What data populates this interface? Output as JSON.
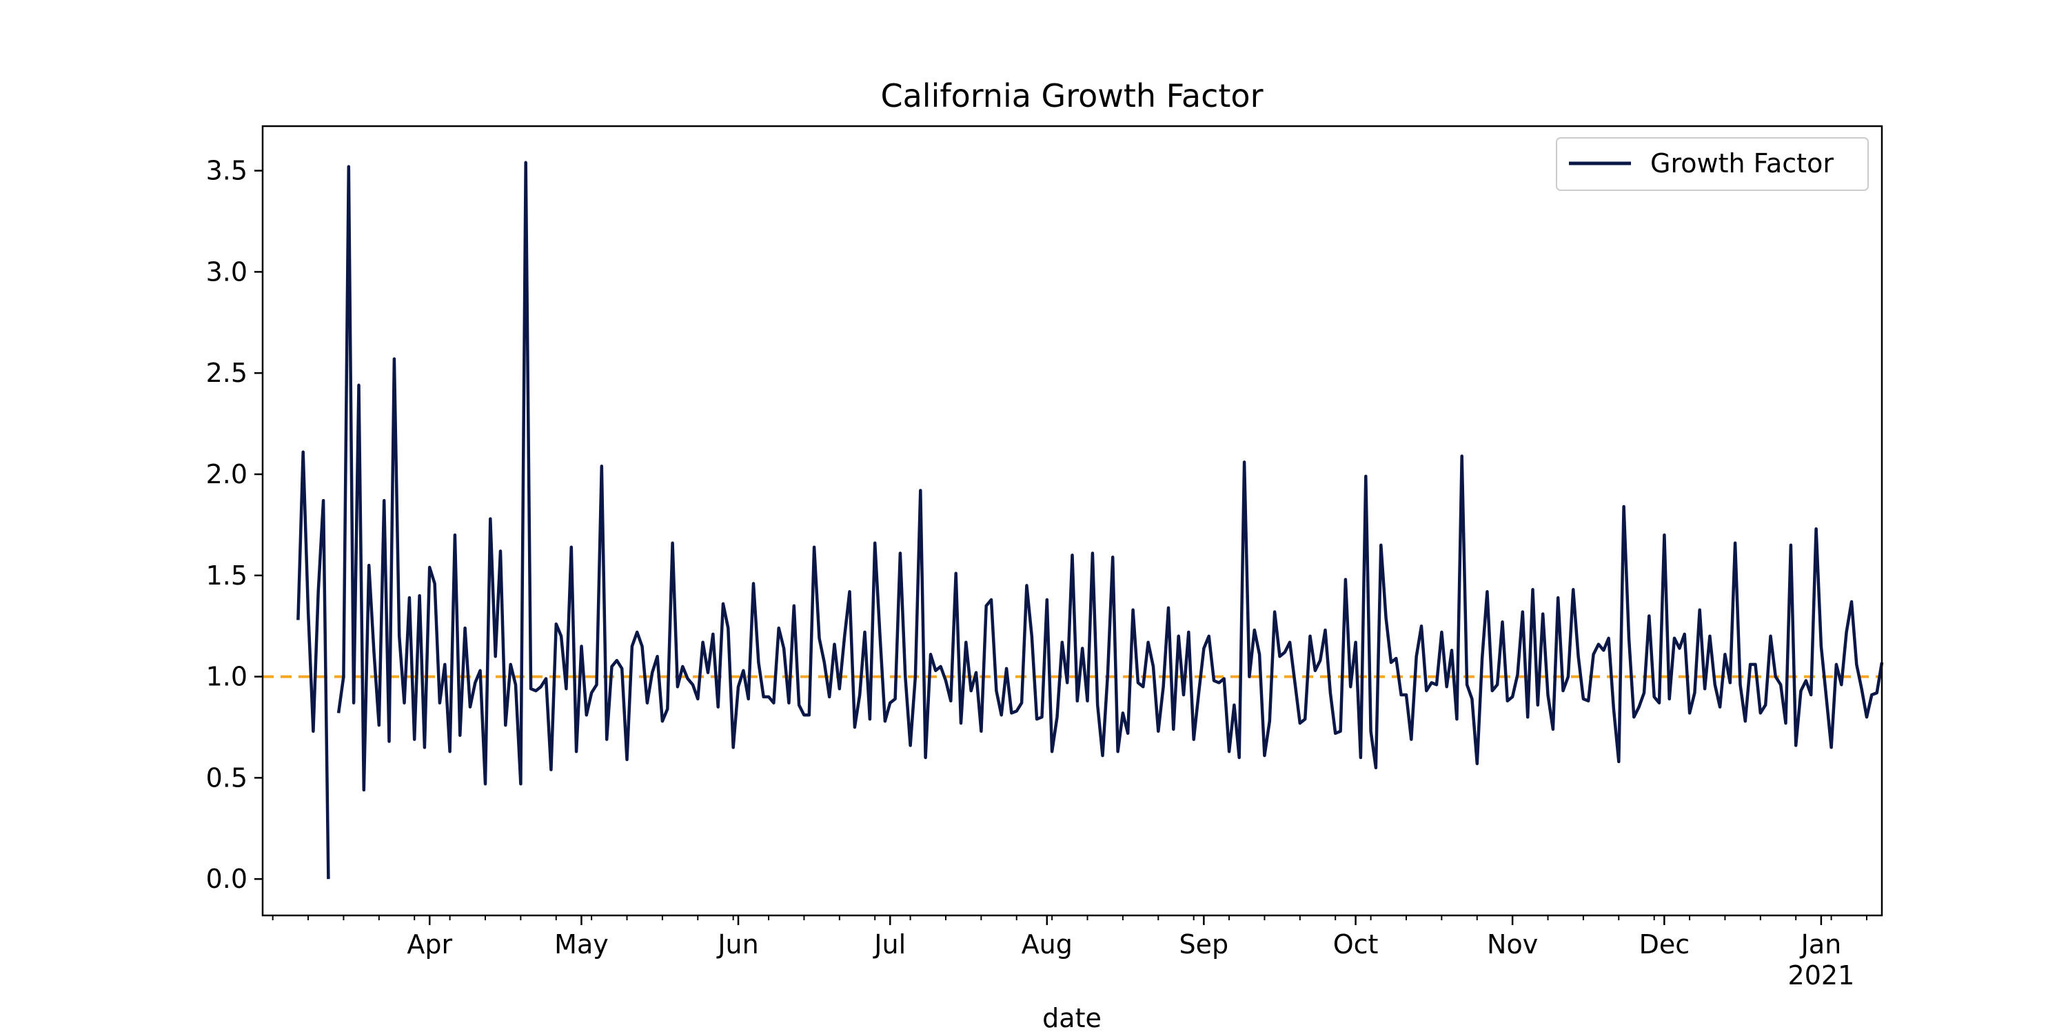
{
  "chart_data": {
    "type": "line",
    "title": "California Growth Factor",
    "xlabel": "date",
    "ylabel": "",
    "x_start": "2020-03-06",
    "xlim": [
      "2020-02-28",
      "2021-01-13"
    ],
    "ylim": [
      -0.18,
      3.72
    ],
    "y_ticks": [
      0.0,
      0.5,
      1.0,
      1.5,
      2.0,
      2.5,
      3.0,
      3.5
    ],
    "y_tick_labels": [
      "0.0",
      "0.5",
      "1.0",
      "1.5",
      "2.0",
      "2.5",
      "3.0",
      "3.5"
    ],
    "x_ticks": [
      {
        "date": "2020-04-01",
        "label": "Apr",
        "sublabel": ""
      },
      {
        "date": "2020-05-01",
        "label": "May",
        "sublabel": ""
      },
      {
        "date": "2020-06-01",
        "label": "Jun",
        "sublabel": ""
      },
      {
        "date": "2020-07-01",
        "label": "Jul",
        "sublabel": ""
      },
      {
        "date": "2020-08-01",
        "label": "Aug",
        "sublabel": ""
      },
      {
        "date": "2020-09-01",
        "label": "Sep",
        "sublabel": ""
      },
      {
        "date": "2020-10-01",
        "label": "Oct",
        "sublabel": ""
      },
      {
        "date": "2020-11-01",
        "label": "Nov",
        "sublabel": ""
      },
      {
        "date": "2020-12-01",
        "label": "Dec",
        "sublabel": ""
      },
      {
        "date": "2021-01-01",
        "label": "Jan",
        "sublabel": "2021"
      }
    ],
    "grid": false,
    "legend": {
      "position": "top-right",
      "entries": [
        "Growth Factor"
      ]
    },
    "reference_line": {
      "y": 1.0,
      "color": "#f5a623",
      "style": "dashed"
    },
    "series": [
      {
        "name": "Growth Factor",
        "color": "#0b1746",
        "values": [
          1.28,
          2.11,
          1.32,
          0.73,
          1.42,
          1.87,
          0.0,
          null,
          0.82,
          1.0,
          3.52,
          0.87,
          2.44,
          0.44,
          1.55,
          1.12,
          0.76,
          1.87,
          0.68,
          2.57,
          1.2,
          0.87,
          1.39,
          0.69,
          1.4,
          0.65,
          1.54,
          1.46,
          0.87,
          1.06,
          0.63,
          1.7,
          0.71,
          1.24,
          0.85,
          0.97,
          1.03,
          0.47,
          1.78,
          1.1,
          1.62,
          0.76,
          1.06,
          0.96,
          0.47,
          3.54,
          0.94,
          0.93,
          0.95,
          0.99,
          0.54,
          1.26,
          1.2,
          0.94,
          1.64,
          0.63,
          1.15,
          0.81,
          0.92,
          0.96,
          2.04,
          0.69,
          1.05,
          1.08,
          1.04,
          0.59,
          1.15,
          1.22,
          1.15,
          0.87,
          1.02,
          1.1,
          0.78,
          0.84,
          1.66,
          0.95,
          1.05,
          0.99,
          0.96,
          0.89,
          1.17,
          1.02,
          1.21,
          0.85,
          1.36,
          1.24,
          0.65,
          0.95,
          1.03,
          0.89,
          1.46,
          1.07,
          0.9,
          0.9,
          0.87,
          1.24,
          1.14,
          0.87,
          1.35,
          0.86,
          0.81,
          0.81,
          1.64,
          1.19,
          1.07,
          0.9,
          1.16,
          0.94,
          1.2,
          1.42,
          0.75,
          0.91,
          1.22,
          0.79,
          1.66,
          1.2,
          0.78,
          0.87,
          0.89,
          1.61,
          1.0,
          0.66,
          1.0,
          1.92,
          0.6,
          1.11,
          1.03,
          1.05,
          0.98,
          0.88,
          1.51,
          0.77,
          1.17,
          0.93,
          1.02,
          0.73,
          1.35,
          1.38,
          0.93,
          0.81,
          1.04,
          0.82,
          0.83,
          0.87,
          1.45,
          1.2,
          0.79,
          0.8,
          1.38,
          0.63,
          0.8,
          1.17,
          0.97,
          1.6,
          0.88,
          1.14,
          0.88,
          1.61,
          0.86,
          0.61,
          1.01,
          1.59,
          0.63,
          0.82,
          0.72,
          1.33,
          0.97,
          0.95,
          1.17,
          1.05,
          0.73,
          0.95,
          1.34,
          0.74,
          1.2,
          0.91,
          1.22,
          0.69,
          0.92,
          1.14,
          1.2,
          0.98,
          0.97,
          0.99,
          0.63,
          0.86,
          0.6,
          2.06,
          1.0,
          1.23,
          1.11,
          0.61,
          0.78,
          1.32,
          1.1,
          1.12,
          1.17,
          0.97,
          0.77,
          0.79,
          1.2,
          1.03,
          1.08,
          1.23,
          0.92,
          0.72,
          0.73,
          1.48,
          0.95,
          1.17,
          0.6,
          1.99,
          0.73,
          0.55,
          1.65,
          1.29,
          1.07,
          1.09,
          0.91,
          0.91,
          0.69,
          1.1,
          1.25,
          0.93,
          0.97,
          0.96,
          1.22,
          0.95,
          1.13,
          0.79,
          2.09,
          0.96,
          0.89,
          0.57,
          1.09,
          1.42,
          0.93,
          0.96,
          1.27,
          0.88,
          0.9,
          1.01,
          1.32,
          0.8,
          1.43,
          0.86,
          1.31,
          0.91,
          0.74,
          1.39,
          0.93,
          1.0,
          1.43,
          1.1,
          0.89,
          0.88,
          1.11,
          1.16,
          1.13,
          1.19,
          0.84,
          0.58,
          1.84,
          1.19,
          0.8,
          0.85,
          0.92,
          1.3,
          0.9,
          0.87,
          1.7,
          0.89,
          1.19,
          1.14,
          1.21,
          0.82,
          0.92,
          1.33,
          0.94,
          1.2,
          0.96,
          0.85,
          1.11,
          0.97,
          1.66,
          0.96,
          0.78,
          1.06,
          1.06,
          0.82,
          0.86,
          1.2,
          1.0,
          0.96,
          0.77,
          1.65,
          0.66,
          0.93,
          0.98,
          0.91,
          1.73,
          1.15,
          0.9,
          0.65,
          1.06,
          0.96,
          1.22,
          1.37,
          1.06,
          0.94,
          0.8,
          0.91,
          0.92,
          1.07
        ]
      }
    ]
  }
}
